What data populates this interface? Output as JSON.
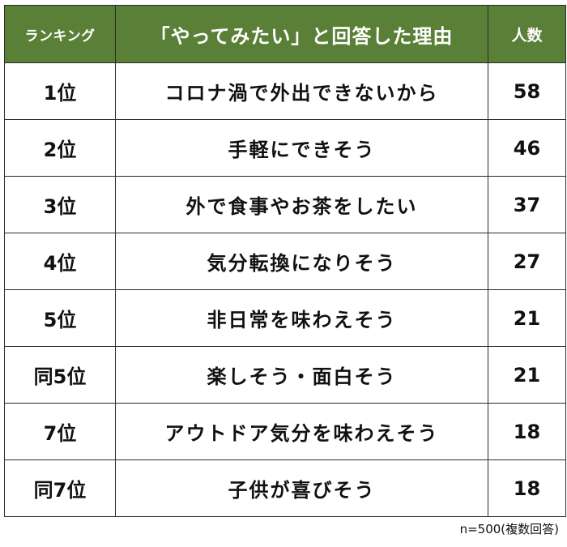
{
  "header": {
    "rank": "ランキング",
    "reason": "「やってみたい」と回答した理由",
    "count": "人数"
  },
  "header_color": "#5a7f36",
  "note": "n=500(複数回答)",
  "chart_data": {
    "type": "table",
    "columns": [
      "ランキング",
      "「やってみたい」と回答した理由",
      "人数"
    ],
    "rows": [
      {
        "rank": "1位",
        "reason": "コロナ渦で外出できないから",
        "count": 58
      },
      {
        "rank": "2位",
        "reason": "手軽にできそう",
        "count": 46
      },
      {
        "rank": "3位",
        "reason": "外で食事やお茶をしたい",
        "count": 37
      },
      {
        "rank": "4位",
        "reason": "気分転換になりそう",
        "count": 27
      },
      {
        "rank": "5位",
        "reason": "非日常を味わえそう",
        "count": 21
      },
      {
        "rank": "同5位",
        "reason": "楽しそう・面白そう",
        "count": 21
      },
      {
        "rank": "7位",
        "reason": "アウトドア気分を味わえそう",
        "count": 18
      },
      {
        "rank": "同7位",
        "reason": "子供が喜びそう",
        "count": 18
      }
    ]
  }
}
